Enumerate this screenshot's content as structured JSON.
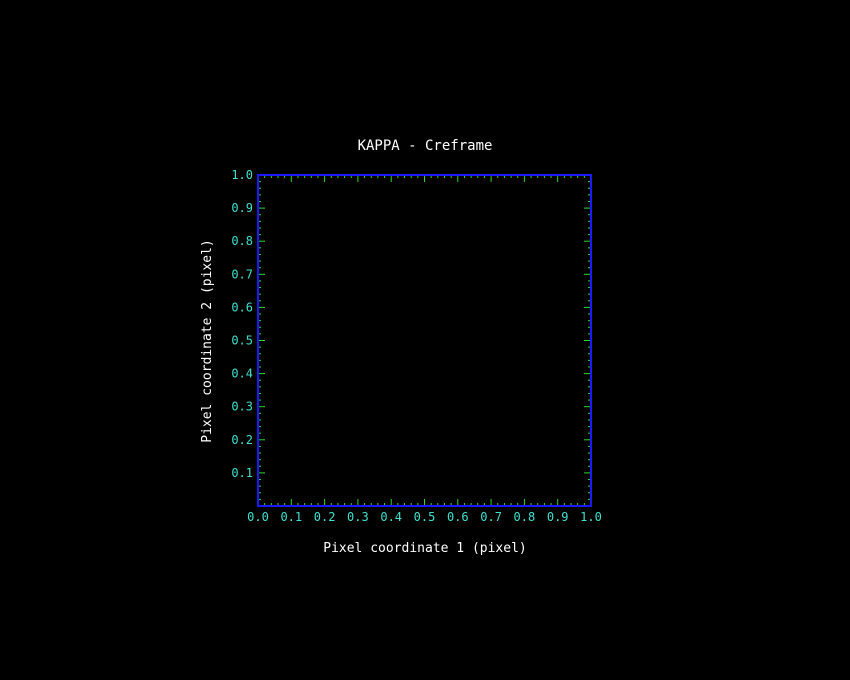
{
  "chart_data": {
    "type": "scatter",
    "title": "KAPPA - Creframe",
    "xlabel": "Pixel coordinate 1 (pixel)",
    "ylabel": "Pixel coordinate 2 (pixel)",
    "xlim": [
      0.0,
      1.0
    ],
    "ylim": [
      0.0,
      1.0
    ],
    "x_ticks": [
      "0.0",
      "0.1",
      "0.2",
      "0.3",
      "0.4",
      "0.5",
      "0.6",
      "0.7",
      "0.8",
      "0.9",
      "1.0"
    ],
    "y_ticks": [
      "0.1",
      "0.2",
      "0.3",
      "0.4",
      "0.5",
      "0.6",
      "0.7",
      "0.8",
      "0.9",
      "1.0"
    ],
    "x_tick_values": [
      0.0,
      0.1,
      0.2,
      0.3,
      0.4,
      0.5,
      0.6,
      0.7,
      0.8,
      0.9,
      1.0
    ],
    "y_tick_values": [
      0.1,
      0.2,
      0.3,
      0.4,
      0.5,
      0.6,
      0.7,
      0.8,
      0.9,
      1.0
    ],
    "series": [],
    "grid": false,
    "colors": {
      "background": "#000000",
      "frame": "#1a1aff",
      "ticks": "#2bd92b",
      "tick_labels": "#40e0d0",
      "text": "#ffffff"
    }
  }
}
